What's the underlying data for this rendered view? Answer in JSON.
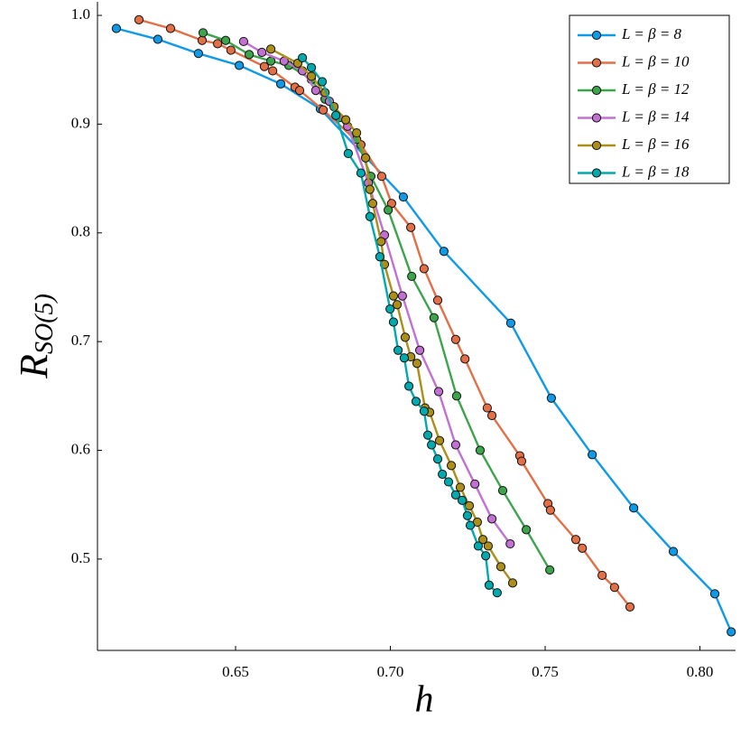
{
  "chart_data": {
    "type": "line",
    "xlabel": "h",
    "ylabel": {
      "text": "R",
      "subscript": "SO(5)"
    },
    "xlim": [
      0.6054,
      0.8115
    ],
    "ylim": [
      0.416,
      1.0125
    ],
    "xticks": [
      0.65,
      {
        "value": 0.7,
        "label": "0.70"
      },
      0.75,
      {
        "value": 0.8,
        "label": "0.80"
      }
    ],
    "yticks": [
      0.5,
      0.6,
      0.7,
      0.8,
      0.9,
      {
        "value": 1.0,
        "label": "1.0"
      }
    ],
    "grid": false,
    "legend": "upper right",
    "series": [
      {
        "name": "L = β = 8",
        "color": "#0f9ae8",
        "x": [
          0.6115,
          0.6249,
          0.638,
          0.6512,
          0.6646,
          0.6774,
          0.7042,
          0.7173,
          0.7389,
          0.752,
          0.7652,
          0.7786,
          0.7914,
          0.8048,
          0.8101
        ],
        "values": [
          0.988,
          0.978,
          0.965,
          0.954,
          0.937,
          0.914,
          0.833,
          0.783,
          0.717,
          0.648,
          0.596,
          0.547,
          0.507,
          0.468,
          0.433
        ]
      },
      {
        "name": "L = β = 10",
        "color": "#e26f46",
        "x": [
          0.6188,
          0.629,
          0.6392,
          0.6442,
          0.6485,
          0.6593,
          0.662,
          0.6692,
          0.6707,
          0.6783,
          0.6905,
          0.6972,
          0.7004,
          0.7066,
          0.7109,
          0.7153,
          0.7211,
          0.7241,
          0.7313,
          0.7328,
          0.7418,
          0.7424,
          0.7509,
          0.7517,
          0.7599,
          0.762,
          0.7684,
          0.7724,
          0.7774
        ],
        "values": [
          0.996,
          0.988,
          0.977,
          0.974,
          0.968,
          0.953,
          0.949,
          0.934,
          0.931,
          0.913,
          0.881,
          0.852,
          0.827,
          0.805,
          0.767,
          0.738,
          0.702,
          0.684,
          0.639,
          0.632,
          0.595,
          0.59,
          0.551,
          0.545,
          0.518,
          0.51,
          0.485,
          0.474,
          0.456
        ]
      },
      {
        "name": "L = β = 12",
        "color": "#3da44d",
        "x": [
          0.6395,
          0.6468,
          0.6544,
          0.6614,
          0.6672,
          0.6745,
          0.6789,
          0.6835,
          0.6891,
          0.6937,
          0.6993,
          0.7069,
          0.7141,
          0.7214,
          0.729,
          0.7363,
          0.7439,
          0.7515
        ],
        "values": [
          0.984,
          0.977,
          0.964,
          0.958,
          0.954,
          0.941,
          0.923,
          0.906,
          0.886,
          0.852,
          0.821,
          0.76,
          0.722,
          0.65,
          0.6,
          0.563,
          0.527,
          0.49
        ]
      },
      {
        "name": "L = β = 14",
        "color": "#c271d2",
        "x": [
          0.6526,
          0.6585,
          0.6657,
          0.6716,
          0.6759,
          0.6803,
          0.6862,
          0.6929,
          0.6981,
          0.7039,
          0.7095,
          0.7156,
          0.7211,
          0.7273,
          0.7328,
          0.7387
        ],
        "values": [
          0.976,
          0.966,
          0.958,
          0.949,
          0.931,
          0.921,
          0.898,
          0.846,
          0.798,
          0.742,
          0.692,
          0.654,
          0.605,
          0.569,
          0.537,
          0.514
        ]
      },
      {
        "name": "L = β = 16",
        "color": "#ac8e18",
        "x": [
          0.6614,
          0.6701,
          0.6745,
          0.6789,
          0.6818,
          0.6856,
          0.6891,
          0.692,
          0.6934,
          0.6943,
          0.697,
          0.6981,
          0.701,
          0.7022,
          0.7048,
          0.7066,
          0.7086,
          0.7112,
          0.7127,
          0.7159,
          0.7197,
          0.7226,
          0.7255,
          0.7281,
          0.7299,
          0.7316,
          0.7357,
          0.7395
        ],
        "values": [
          0.969,
          0.956,
          0.944,
          0.929,
          0.916,
          0.904,
          0.892,
          0.869,
          0.84,
          0.827,
          0.792,
          0.771,
          0.742,
          0.734,
          0.704,
          0.686,
          0.68,
          0.639,
          0.635,
          0.609,
          0.586,
          0.566,
          0.549,
          0.534,
          0.518,
          0.512,
          0.493,
          0.478
        ]
      },
      {
        "name": "L = β = 18",
        "color": "#00a9ad",
        "x": [
          0.6716,
          0.6745,
          0.678,
          0.6824,
          0.6864,
          0.6905,
          0.6934,
          0.6966,
          0.6999,
          0.701,
          0.7025,
          0.7045,
          0.706,
          0.7083,
          0.7109,
          0.7121,
          0.7133,
          0.7153,
          0.7168,
          0.7188,
          0.7211,
          0.7232,
          0.7249,
          0.7258,
          0.7284,
          0.7308,
          0.7319,
          0.7345
        ],
        "values": [
          0.961,
          0.952,
          0.939,
          0.908,
          0.873,
          0.855,
          0.815,
          0.778,
          0.73,
          0.718,
          0.692,
          0.685,
          0.659,
          0.645,
          0.636,
          0.614,
          0.605,
          0.592,
          0.578,
          0.571,
          0.559,
          0.554,
          0.54,
          0.531,
          0.512,
          0.503,
          0.476,
          0.469
        ]
      }
    ]
  }
}
